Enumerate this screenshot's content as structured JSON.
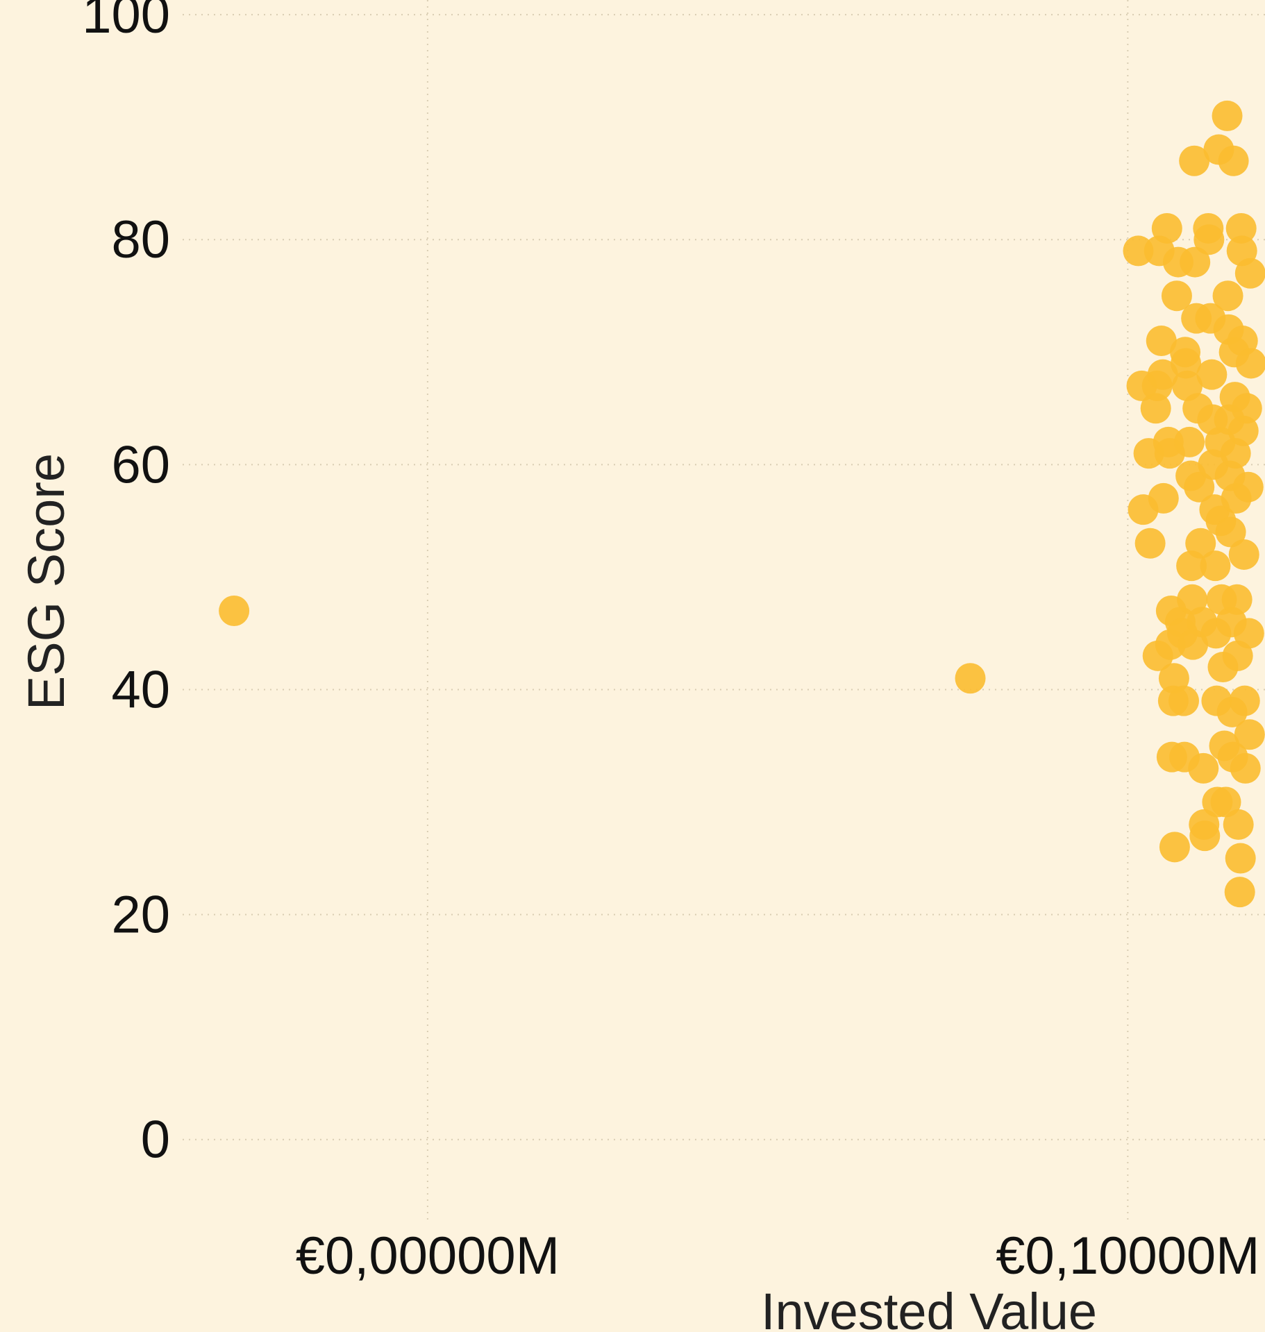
{
  "colors": {
    "background": "#fdf3de",
    "point": "#fbbd30",
    "grid": "#d9cdb3",
    "text": "#111111"
  },
  "chart_data": {
    "type": "scatter",
    "xlabel": "Invested Value",
    "ylabel": "ESG Score",
    "xlim": [
      -0.03499,
      0.1196
    ],
    "ylim": [
      -7.3,
      101.3
    ],
    "x_ticks": [
      {
        "value": 0.0,
        "label": "€0,00000M"
      },
      {
        "value": 0.1,
        "label": "€0,10000M"
      }
    ],
    "y_ticks": [
      {
        "value": 0,
        "label": "0"
      },
      {
        "value": 20,
        "label": "20"
      },
      {
        "value": 40,
        "label": "40"
      },
      {
        "value": 60,
        "label": "60"
      },
      {
        "value": 80,
        "label": "80"
      },
      {
        "value": 100,
        "label": "100"
      }
    ],
    "grid": true,
    "legend": "none",
    "series": [
      {
        "points": [
          [
            -0.02764,
            47.0
          ],
          [
            0.07751,
            41.0
          ],
          [
            0.1015,
            79.0
          ],
          [
            0.102,
            67.0
          ],
          [
            0.1022,
            56.0
          ],
          [
            0.103,
            61.0
          ],
          [
            0.1032,
            53.0
          ],
          [
            0.104,
            65.0
          ],
          [
            0.1042,
            67.0
          ],
          [
            0.1043,
            43.0
          ],
          [
            0.1045,
            79.0
          ],
          [
            0.1048,
            71.0
          ],
          [
            0.105,
            68.0
          ],
          [
            0.1051,
            57.0
          ],
          [
            0.1056,
            81.0
          ],
          [
            0.1058,
            62.0
          ],
          [
            0.106,
            61.0
          ],
          [
            0.1061,
            44.0
          ],
          [
            0.1062,
            47.0
          ],
          [
            0.1063,
            34.0
          ],
          [
            0.1065,
            39.0
          ],
          [
            0.1066,
            41.0
          ],
          [
            0.1067,
            26.0
          ],
          [
            0.107,
            75.0
          ],
          [
            0.1072,
            78.0
          ],
          [
            0.1075,
            46.0
          ],
          [
            0.1078,
            45.0
          ],
          [
            0.108,
            39.0
          ],
          [
            0.1081,
            34.0
          ],
          [
            0.1082,
            70.0
          ],
          [
            0.1083,
            69.0
          ],
          [
            0.1085,
            67.0
          ],
          [
            0.1088,
            62.0
          ],
          [
            0.109,
            59.0
          ],
          [
            0.1091,
            51.0
          ],
          [
            0.1092,
            48.0
          ],
          [
            0.1093,
            44.0
          ],
          [
            0.1095,
            87.0
          ],
          [
            0.1096,
            78.0
          ],
          [
            0.1098,
            73.0
          ],
          [
            0.11,
            65.0
          ],
          [
            0.1102,
            58.0
          ],
          [
            0.1104,
            53.0
          ],
          [
            0.1106,
            46.0
          ],
          [
            0.1108,
            33.0
          ],
          [
            0.1109,
            28.0
          ],
          [
            0.111,
            27.0
          ],
          [
            0.1115,
            81.0
          ],
          [
            0.1116,
            80.0
          ],
          [
            0.1118,
            73.0
          ],
          [
            0.112,
            68.0
          ],
          [
            0.1121,
            64.0
          ],
          [
            0.1122,
            60.0
          ],
          [
            0.1124,
            56.0
          ],
          [
            0.1125,
            51.0
          ],
          [
            0.1126,
            45.0
          ],
          [
            0.1127,
            39.0
          ],
          [
            0.1128,
            30.0
          ],
          [
            0.113,
            88.0
          ],
          [
            0.1132,
            62.0
          ],
          [
            0.1133,
            55.0
          ],
          [
            0.1134,
            48.0
          ],
          [
            0.1136,
            42.0
          ],
          [
            0.1138,
            35.0
          ],
          [
            0.114,
            30.0
          ],
          [
            0.1142,
            91.0
          ],
          [
            0.1143,
            75.0
          ],
          [
            0.1144,
            72.0
          ],
          [
            0.1145,
            64.0
          ],
          [
            0.1146,
            59.0
          ],
          [
            0.1147,
            54.0
          ],
          [
            0.1148,
            46.0
          ],
          [
            0.1149,
            38.0
          ],
          [
            0.115,
            34.0
          ],
          [
            0.1151,
            87.0
          ],
          [
            0.1152,
            70.0
          ],
          [
            0.1153,
            66.0
          ],
          [
            0.1154,
            61.0
          ],
          [
            0.1155,
            57.0
          ],
          [
            0.1156,
            48.0
          ],
          [
            0.1157,
            43.0
          ],
          [
            0.1158,
            28.0
          ],
          [
            0.116,
            22.0
          ],
          [
            0.1161,
            25.0
          ],
          [
            0.1162,
            81.0
          ],
          [
            0.1163,
            79.0
          ],
          [
            0.1164,
            71.0
          ],
          [
            0.1165,
            63.0
          ],
          [
            0.1166,
            52.0
          ],
          [
            0.1167,
            39.0
          ],
          [
            0.1168,
            33.0
          ],
          [
            0.117,
            65.0
          ],
          [
            0.1172,
            58.0
          ],
          [
            0.1173,
            45.0
          ],
          [
            0.1174,
            36.0
          ],
          [
            0.1175,
            77.0
          ],
          [
            0.1176,
            69.0
          ]
        ]
      }
    ]
  }
}
